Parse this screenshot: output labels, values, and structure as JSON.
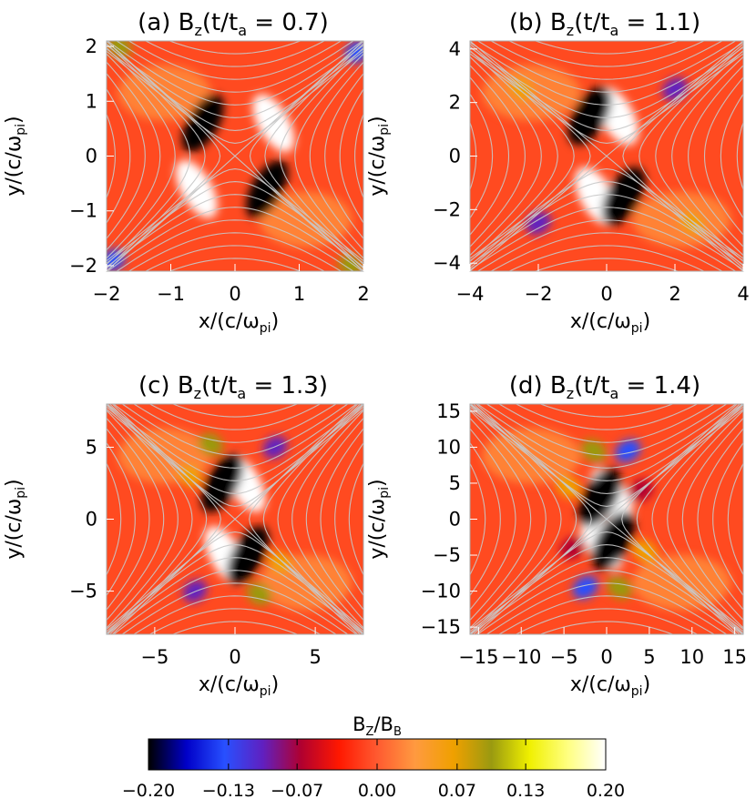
{
  "chart_data": [
    {
      "type": "heatmap",
      "panel_label": "(a)",
      "title_var": "B",
      "title_sub": "z",
      "title_mid": "(t/t",
      "title_sub2": "a",
      "title_val": " = 0.7)",
      "xlabel": "x/(c/ω",
      "xlabel_sub": "pi",
      "xlabel_end": ")",
      "ylabel": "y/(c/ω",
      "ylabel_sub": "pi",
      "ylabel_end": ")",
      "xlim": [
        -2,
        2
      ],
      "ylim": [
        -2.1,
        2.1
      ],
      "xticks": [
        -2,
        -1,
        0,
        1,
        2
      ],
      "yticks": [
        -2,
        -1,
        0,
        1,
        2
      ],
      "xtick_labels": [
        "−2",
        "−1",
        "0",
        "1",
        "2"
      ],
      "ytick_labels": [
        "−2",
        "−1",
        "0",
        "1",
        "2"
      ],
      "features": [
        {
          "x": 0.6,
          "y": 0.6,
          "value": 0.19
        },
        {
          "x": -0.6,
          "y": -0.6,
          "value": 0.19
        },
        {
          "x": -0.5,
          "y": 0.6,
          "value": -0.19
        },
        {
          "x": 0.5,
          "y": -0.6,
          "value": -0.19
        },
        {
          "x": -1.8,
          "y": 2.0,
          "value": 0.1
        },
        {
          "x": 1.8,
          "y": -2.0,
          "value": 0.1
        },
        {
          "x": 1.9,
          "y": 1.9,
          "value": -0.12
        },
        {
          "x": -1.9,
          "y": -1.9,
          "value": -0.12
        }
      ]
    },
    {
      "type": "heatmap",
      "panel_label": "(b)",
      "title_var": "B",
      "title_sub": "z",
      "title_mid": "(t/t",
      "title_sub2": "a",
      "title_val": " = 1.1)",
      "xlabel": "x/(c/ω",
      "xlabel_sub": "pi",
      "xlabel_end": ")",
      "ylabel": "y/(c/ω",
      "ylabel_sub": "pi",
      "ylabel_end": ")",
      "xlim": [
        -4,
        4
      ],
      "ylim": [
        -4.3,
        4.3
      ],
      "xticks": [
        -4,
        -2,
        0,
        2,
        4
      ],
      "yticks": [
        -4,
        -2,
        0,
        2,
        4
      ],
      "xtick_labels": [
        "−4",
        "−2",
        "0",
        "2",
        "4"
      ],
      "ytick_labels": [
        "−4",
        "−2",
        "0",
        "2",
        "4"
      ],
      "features": [
        {
          "x": 0.3,
          "y": 1.5,
          "value": 0.2
        },
        {
          "x": -0.3,
          "y": -1.5,
          "value": 0.2
        },
        {
          "x": -0.5,
          "y": 1.5,
          "value": -0.2
        },
        {
          "x": 0.5,
          "y": -1.5,
          "value": -0.2
        },
        {
          "x": -2.5,
          "y": 2.5,
          "value": 0.07
        },
        {
          "x": 2.5,
          "y": -2.5,
          "value": 0.07
        },
        {
          "x": 2.0,
          "y": 2.5,
          "value": -0.09
        },
        {
          "x": -2.0,
          "y": -2.5,
          "value": -0.09
        }
      ]
    },
    {
      "type": "heatmap",
      "panel_label": "(c)",
      "title_var": "B",
      "title_sub": "z",
      "title_mid": "(t/t",
      "title_sub2": "a",
      "title_val": " = 1.3)",
      "xlabel": "x/(c/ω",
      "xlabel_sub": "pi",
      "xlabel_end": ")",
      "ylabel": "y/(c/ω",
      "ylabel_sub": "pi",
      "ylabel_end": ")",
      "xlim": [
        -8,
        8
      ],
      "ylim": [
        -8,
        8
      ],
      "xticks": [
        -5,
        0,
        5
      ],
      "yticks": [
        -5,
        0,
        5
      ],
      "xtick_labels": [
        "−5",
        "0",
        "5"
      ],
      "ytick_labels": [
        "−5",
        "0",
        "5"
      ],
      "features": [
        {
          "x": 0.6,
          "y": 2.5,
          "value": 0.2
        },
        {
          "x": -0.6,
          "y": -2.5,
          "value": 0.2
        },
        {
          "x": -0.8,
          "y": 2.5,
          "value": -0.2
        },
        {
          "x": 0.8,
          "y": -2.5,
          "value": -0.2
        },
        {
          "x": -1.5,
          "y": 5.2,
          "value": 0.1
        },
        {
          "x": 1.5,
          "y": -5.2,
          "value": 0.1
        },
        {
          "x": -2.8,
          "y": 3.0,
          "value": 0.08
        },
        {
          "x": 2.8,
          "y": -3.0,
          "value": 0.08
        },
        {
          "x": 2.5,
          "y": 5.0,
          "value": -0.1
        },
        {
          "x": -2.5,
          "y": -5.0,
          "value": -0.1
        }
      ]
    },
    {
      "type": "heatmap",
      "panel_label": "(d)",
      "title_var": "B",
      "title_sub": "z",
      "title_mid": "(t/t",
      "title_sub2": "a",
      "title_val": " = 1.4)",
      "xlabel": "x/(c/ω",
      "xlabel_sub": "pi",
      "xlabel_end": ")",
      "ylabel": "y/(c/ω",
      "ylabel_sub": "pi",
      "ylabel_end": ")",
      "xlim": [
        -16,
        16
      ],
      "ylim": [
        -16,
        16
      ],
      "xticks": [
        -15,
        -10,
        -5,
        0,
        5,
        10,
        15
      ],
      "yticks": [
        -15,
        -10,
        -5,
        0,
        5,
        10,
        15
      ],
      "xtick_labels": [
        "−15",
        "−10",
        "−5",
        "0",
        "5",
        "10",
        "15"
      ],
      "ytick_labels": [
        "−15",
        "−10",
        "−5",
        "0",
        "5",
        "10",
        "15"
      ],
      "features": [
        {
          "x": 0.6,
          "y": 3.0,
          "value": 0.2
        },
        {
          "x": -0.6,
          "y": -3.0,
          "value": 0.2
        },
        {
          "x": -0.8,
          "y": 3.0,
          "value": -0.2
        },
        {
          "x": 0.8,
          "y": -3.0,
          "value": -0.2
        },
        {
          "x": -1.5,
          "y": 9.5,
          "value": 0.1
        },
        {
          "x": 1.5,
          "y": -9.5,
          "value": 0.1
        },
        {
          "x": -4.5,
          "y": 4.5,
          "value": 0.08
        },
        {
          "x": 4.5,
          "y": -4.5,
          "value": 0.08
        },
        {
          "x": 2.5,
          "y": 9.5,
          "value": -0.12
        },
        {
          "x": -2.5,
          "y": -9.5,
          "value": -0.12
        },
        {
          "x": 4.0,
          "y": 4.0,
          "value": -0.07
        },
        {
          "x": -4.0,
          "y": -4.0,
          "value": -0.07
        }
      ]
    }
  ],
  "colorbar": {
    "label_main": "B",
    "label_sub": "Z",
    "label_mid": "/B",
    "label_sub2": "B",
    "range": [
      -0.2,
      0.2
    ],
    "ticks": [
      -0.2,
      -0.13,
      -0.07,
      0.0,
      0.07,
      0.13,
      0.2
    ],
    "tick_labels": [
      "−0.20",
      "−0.13",
      "−0.07",
      "0.00",
      "0.07",
      "0.13",
      "0.20"
    ],
    "colors": [
      "#000000",
      "#0000c8",
      "#2850ff",
      "#6020c0",
      "#b00030",
      "#ff1800",
      "#ff5a30",
      "#ff9a40",
      "#f0a000",
      "#9a9a10",
      "#f0f000",
      "#ffff80",
      "#ffffff"
    ]
  },
  "field_line_color": "#c8c8c8"
}
